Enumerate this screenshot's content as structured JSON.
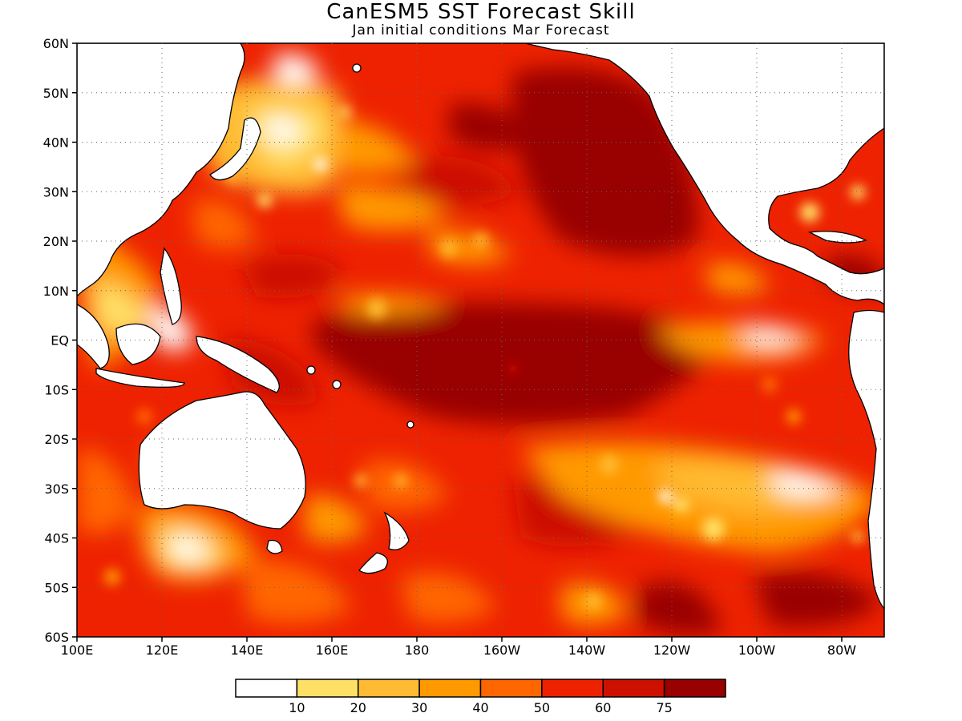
{
  "title": "CanESM5 SST Forecast Skill",
  "subtitle": "Jan initial conditions  Mar Forecast",
  "map": {
    "lon_range": [
      100,
      290
    ],
    "lat_range": [
      -60,
      60
    ],
    "lat_ticks": [
      "60N",
      "50N",
      "40N",
      "30N",
      "20N",
      "10N",
      "EQ",
      "10S",
      "20S",
      "30S",
      "40S",
      "50S",
      "60S"
    ],
    "lon_ticks": [
      "100E",
      "120E",
      "140E",
      "160E",
      "180",
      "160W",
      "140W",
      "120W",
      "100W",
      "80W"
    ],
    "grid": "dotted"
  },
  "colorbar": {
    "labels": [
      "10",
      "20",
      "30",
      "40",
      "50",
      "60",
      "75"
    ],
    "colors": [
      "#ffffff",
      "#ffe066",
      "#ffbb33",
      "#ff9900",
      "#ff6600",
      "#ee2200",
      "#cc1100",
      "#990000"
    ]
  }
}
